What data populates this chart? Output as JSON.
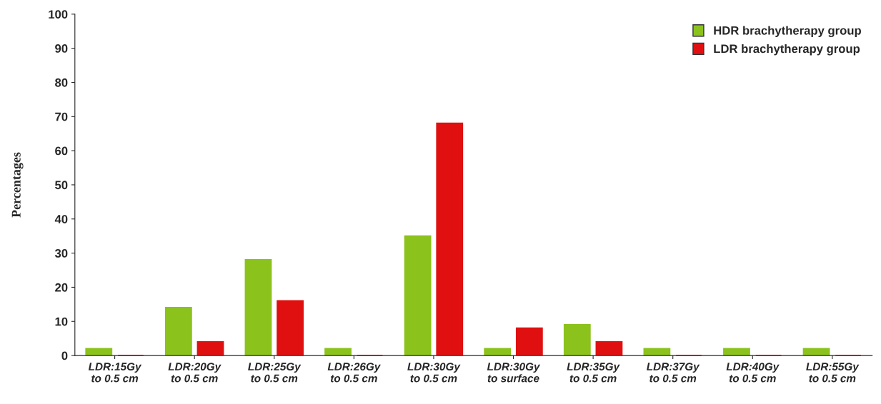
{
  "chart_data": {
    "type": "bar",
    "ylabel": "Percentages",
    "categories": [
      "LDR:15Gy\nto 0.5 cm",
      "LDR:20Gy\nto 0.5 cm",
      "LDR:25Gy\nto 0.5 cm",
      "LDR:26Gy\nto 0.5 cm",
      "LDR:30Gy\nto 0.5 cm",
      "LDR:30Gy\nto surface",
      "LDR:35Gy\nto 0.5 cm",
      "LDR:37Gy\nto 0.5 cm",
      "LDR:40Gy\nto 0.5 cm",
      "LDR:55Gy\nto 0.5 cm"
    ],
    "series": [
      {
        "name": "HDR brachytherapy group",
        "color": "#8cc21c",
        "values": [
          2,
          14,
          28,
          2,
          35,
          2,
          9,
          2,
          2,
          2
        ]
      },
      {
        "name": "LDR brachytherapy group",
        "color": "#e01010",
        "values": [
          0,
          4,
          16,
          0,
          68,
          8,
          4,
          0,
          0,
          0
        ]
      }
    ],
    "ylim": [
      0,
      100
    ],
    "yticks": [
      0,
      10,
      20,
      30,
      40,
      50,
      60,
      70,
      80,
      90,
      100
    ],
    "grid": false,
    "legend": "top right"
  }
}
